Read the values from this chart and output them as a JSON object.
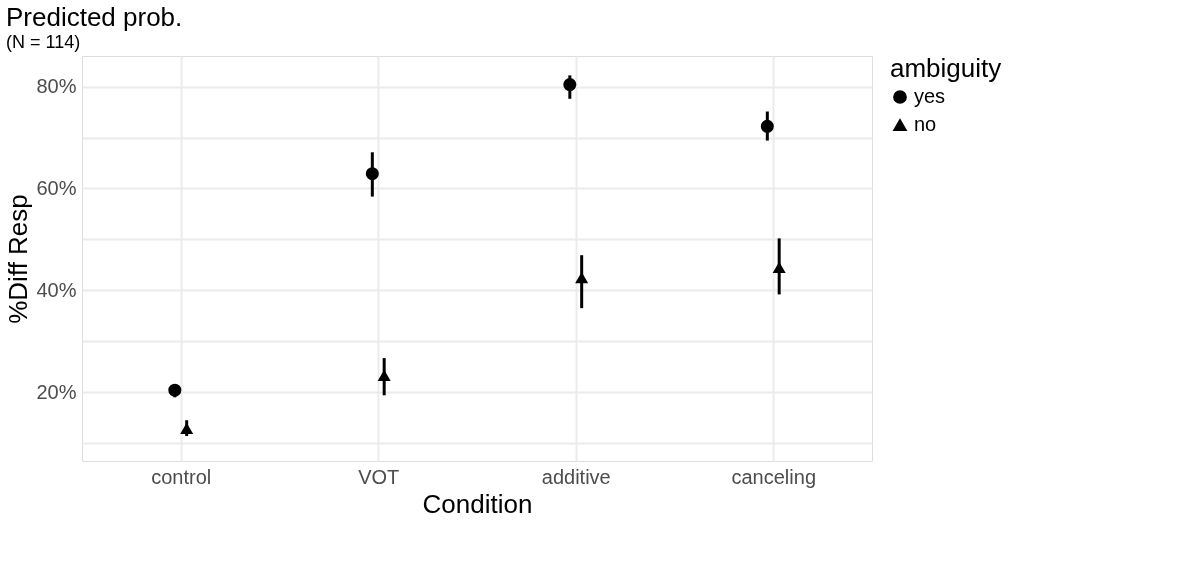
{
  "chart_data": {
    "type": "scatter",
    "title": "Predicted prob.",
    "subtitle": "(N = 114)",
    "xlabel": "Condition",
    "ylabel": "%Diff Resp",
    "legend_title": "ambiguity",
    "categories": [
      "control",
      "VOT",
      "additive",
      "canceling"
    ],
    "series": [
      {
        "name": "yes",
        "color": "#000000",
        "marker": "circle",
        "values": [
          20.4,
          62.9,
          80.4,
          72.2
        ],
        "errors": [
          [
            19.0,
            21.6
          ],
          [
            58.4,
            67.1
          ],
          [
            77.6,
            82.2
          ],
          [
            69.4,
            75.1
          ]
        ]
      },
      {
        "name": "no",
        "color": "#000000",
        "marker": "triangle",
        "values": [
          12.9,
          23.3,
          42.5,
          44.5
        ],
        "errors": [
          [
            11.4,
            14.5
          ],
          [
            19.4,
            26.7
          ],
          [
            36.5,
            46.9
          ],
          [
            39.2,
            50.2
          ]
        ]
      }
    ],
    "ylim": [
      6.5,
      86
    ],
    "yticks": [
      {
        "value": 10,
        "label": null
      },
      {
        "value": 20,
        "label": "20%"
      },
      {
        "value": 30,
        "label": null
      },
      {
        "value": 40,
        "label": "40%"
      },
      {
        "value": 50,
        "label": null
      },
      {
        "value": 60,
        "label": "60%"
      },
      {
        "value": 70,
        "label": null
      },
      {
        "value": 80,
        "label": "80%"
      }
    ],
    "grid": true,
    "legend": "right"
  }
}
